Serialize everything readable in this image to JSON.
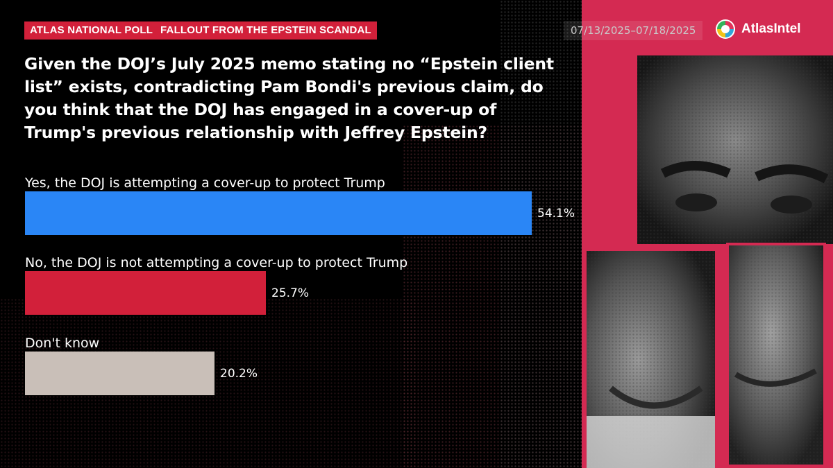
{
  "header": {
    "poll_tag": "ATLAS NATIONAL POLL",
    "topic_tag": "FALLOUT FROM THE EPSTEIN SCANDAL",
    "date_range": "07/13/2025–07/18/2025",
    "brand_name": "AtlasIntel"
  },
  "colors": {
    "yes": "#2a86f6",
    "no": "#d2203a",
    "dont_know": "#c9bfb8",
    "accent": "#d42a52"
  },
  "chart_data": {
    "type": "bar",
    "orientation": "horizontal",
    "title": "Given the DOJ’s July 2025 memo stating no “Epstein client list” exists, contradicting Pam Bondi's previous claim, do you think that the DOJ has engaged in a cover-up of Trump's previous relationship with Jeffrey Epstein?",
    "unit": "%",
    "xlim": [
      0,
      54.1
    ],
    "categories": [
      "Yes, the DOJ is attempting a cover-up to protect Trump",
      "No, the DOJ is not attempting a cover-up to protect Trump",
      "Don't know"
    ],
    "values": [
      54.1,
      25.7,
      20.2
    ],
    "value_labels": [
      "54.1%",
      "25.7%",
      "20.2%"
    ]
  }
}
